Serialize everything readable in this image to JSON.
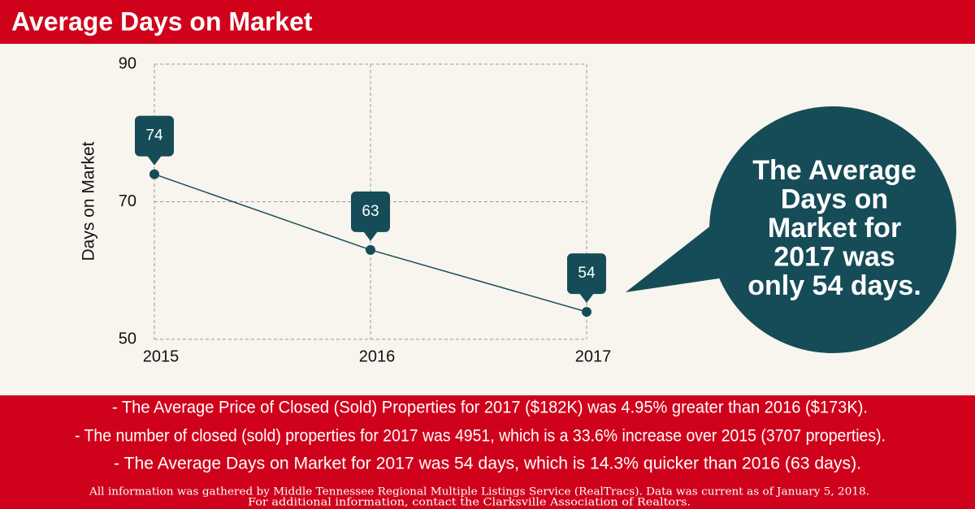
{
  "chart_data": {
    "type": "line",
    "title": "Average Days on Market",
    "y_label": "Days on Market",
    "categories": [
      "2015",
      "2016",
      "2017"
    ],
    "values": [
      74,
      63,
      54
    ],
    "color": "#164c57",
    "ylim": [
      50,
      90
    ],
    "yticks": [
      50,
      70,
      90
    ],
    "grid": true,
    "callout": [
      "The Average",
      "Days on",
      "Market for",
      "2017 was",
      "only 54 days."
    ],
    "notes": [
      "- The Average Price of Closed (Sold) Properties for 2017 ($182K) was 4.95% greater than 2016 ($173K).",
      "- The number of closed (sold) properties for 2017 was 4951, which is a 33.6% increase over 2015 (3707 properties).",
      "- The Average Days on Market for 2017 was 54 days, which is 14.3% quicker than 2016 (63 days)."
    ],
    "footnote": [
      "All information was gathered by Middle Tennessee Regional Multiple Listings Service (RealTracs). Data was current as of January 5, 2018.",
      "For additional information, contact the Clarksville Association of Realtors."
    ]
  }
}
